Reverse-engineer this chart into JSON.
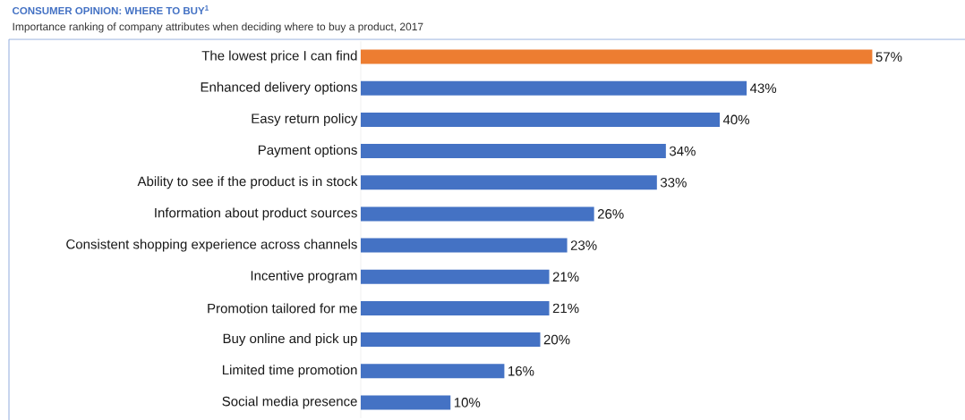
{
  "chart_data": {
    "type": "bar",
    "orientation": "horizontal",
    "title": "CONSUMER OPINION: WHERE TO BUY$^{1}$",
    "subtitle": "Importance ranking of company attributes when deciding where to buy a product, 2017",
    "categories": [
      "The lowest price I can find",
      "Enhanced delivery options",
      "Easy return policy",
      "Payment options",
      "Ability to see if the product is in stock",
      "Information about product sources",
      "Consistent shopping experience across channels",
      "Incentive program",
      "Promotion tailored for me",
      "Buy online and pick up",
      "Limited time promotion",
      "Social media presence"
    ],
    "values": [
      57,
      43,
      40,
      34,
      33,
      26,
      23,
      21,
      21,
      20,
      16,
      10
    ],
    "value_labels": [
      "57%",
      "43%",
      "40%",
      "34%",
      "33%",
      "26%",
      "23%",
      "21%",
      "21%",
      "20%",
      "16%",
      "10%"
    ],
    "colors": [
      "#ed7d31",
      "#4472c4",
      "#4472c4",
      "#4472c4",
      "#4472c4",
      "#4472c4",
      "#4472c4",
      "#4472c4",
      "#4472c4",
      "#4472c4",
      "#4472c4",
      "#4472c4"
    ]
  }
}
